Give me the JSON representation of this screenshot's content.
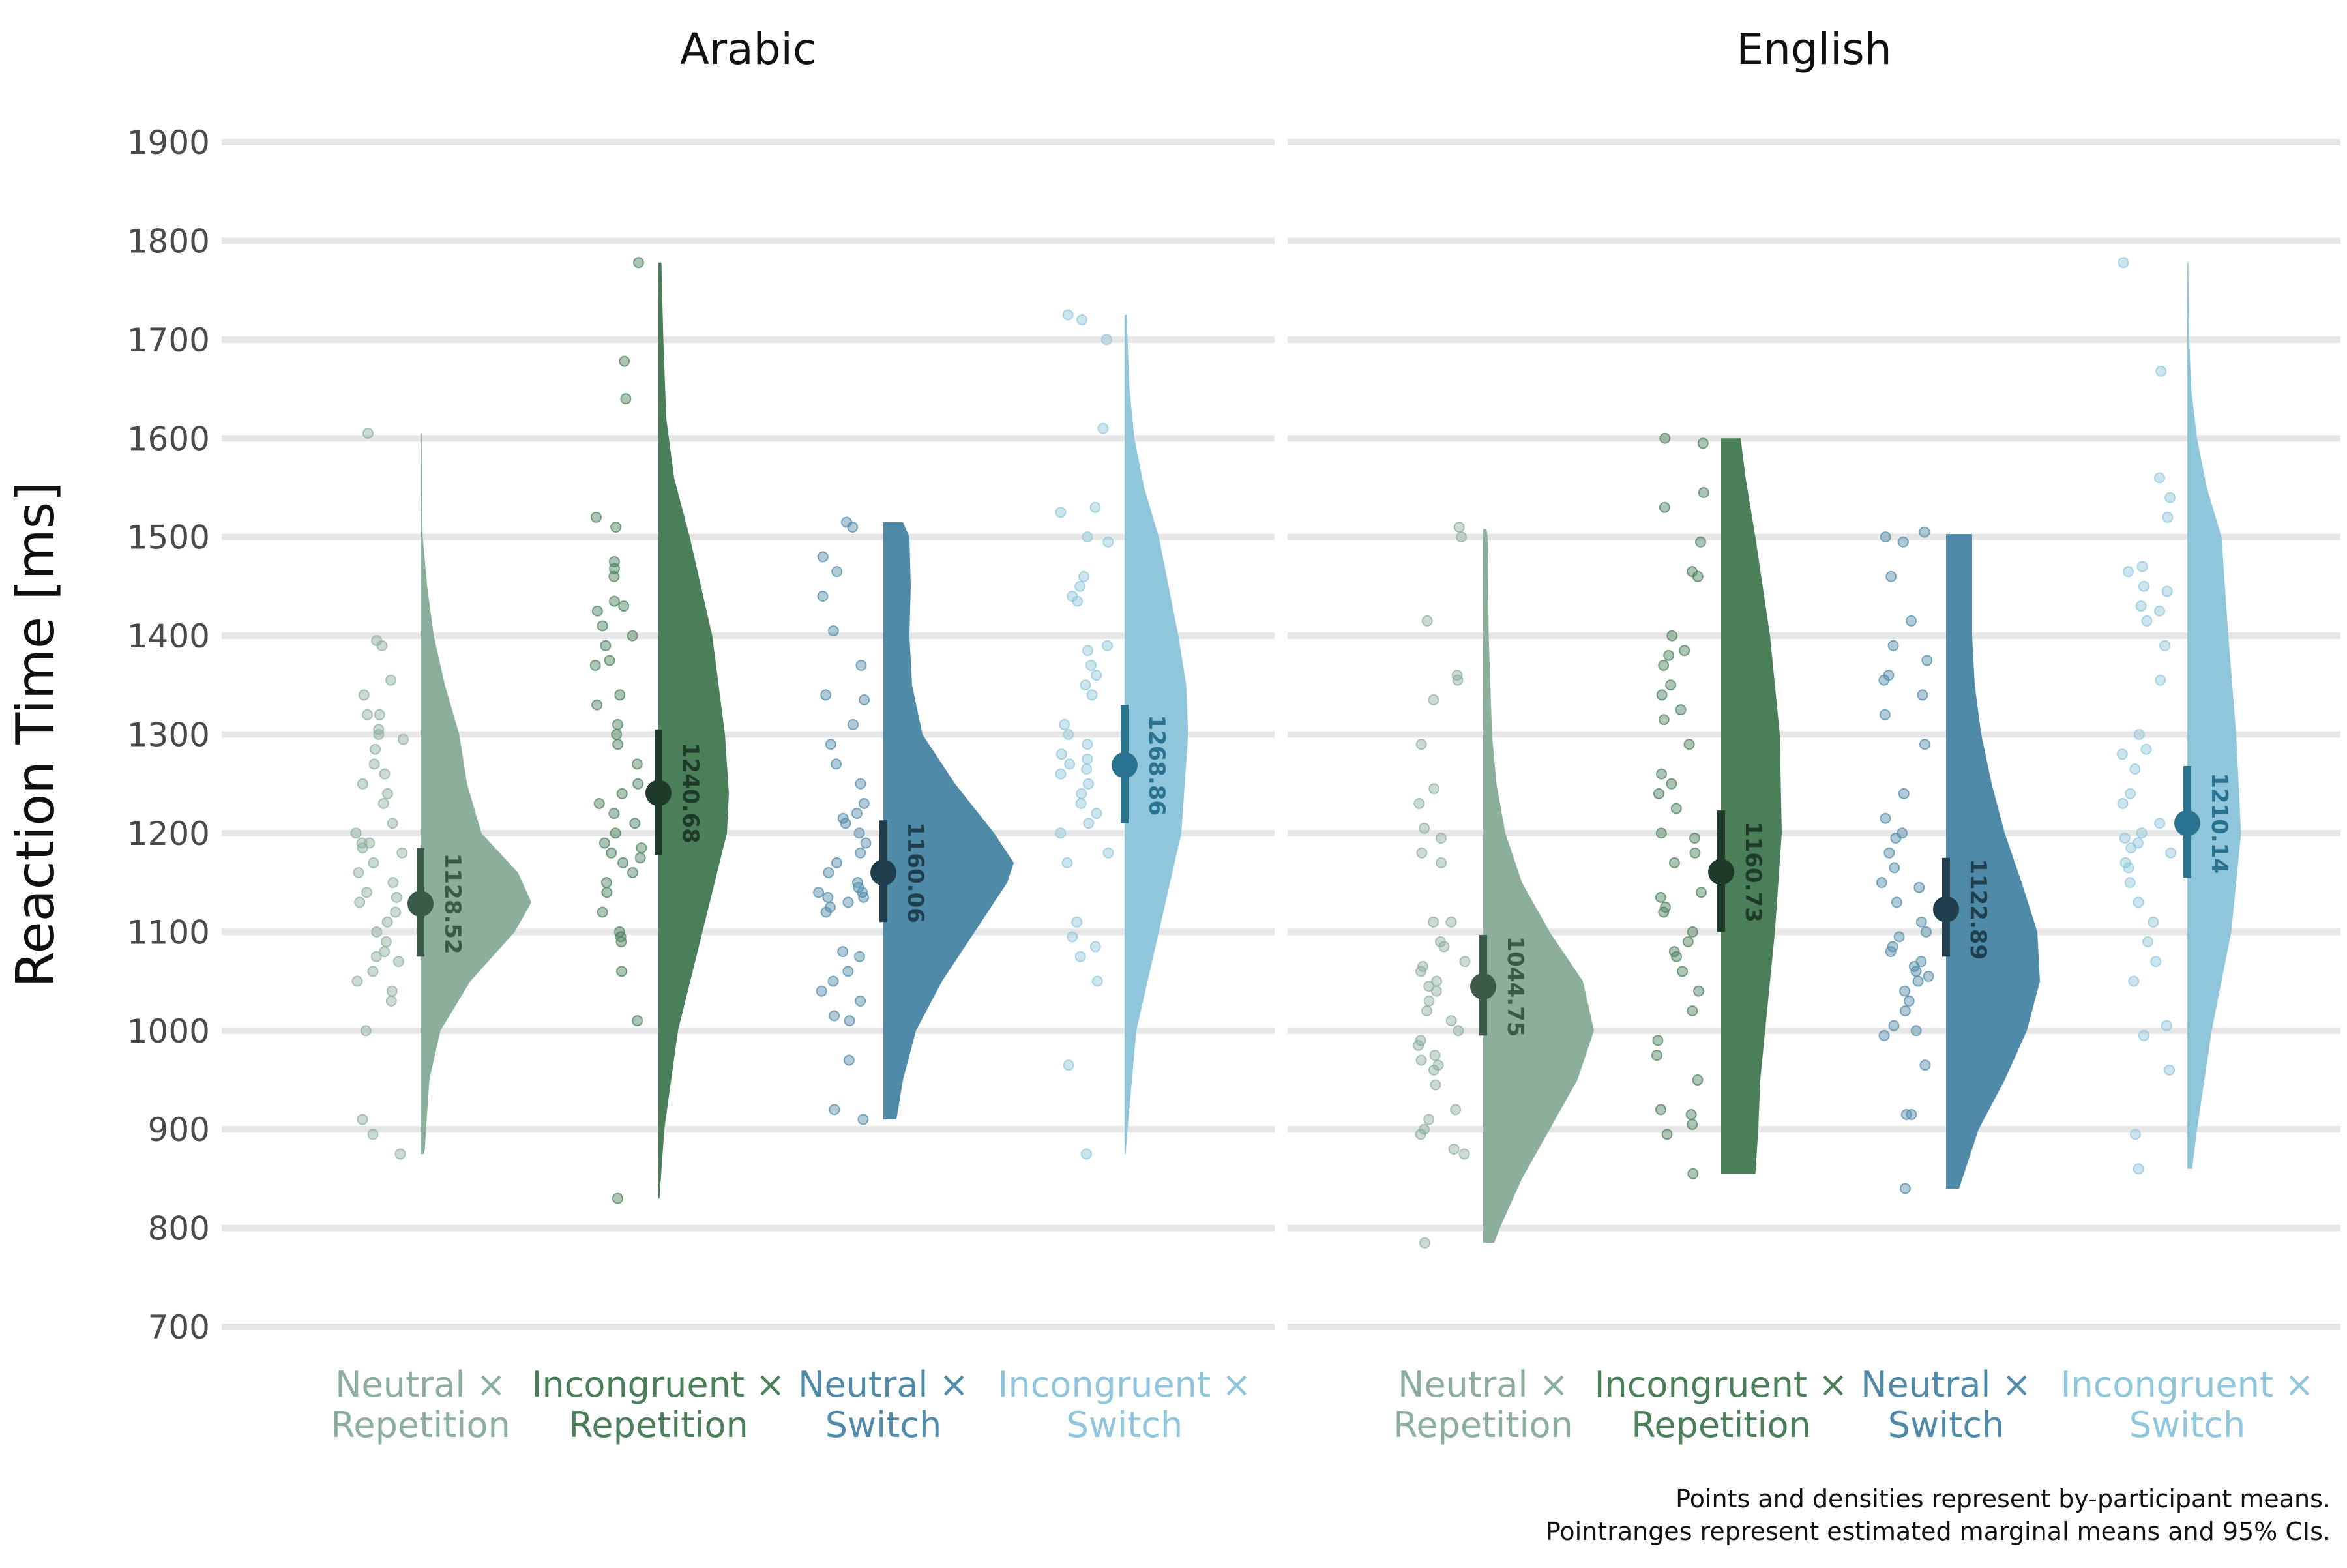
{
  "chart_data": {
    "type": "raincloud",
    "ylabel": "Reaction Time [ms]",
    "ylim": [
      700,
      1900
    ],
    "y_ticks": [
      700,
      800,
      900,
      1000,
      1100,
      1200,
      1300,
      1400,
      1500,
      1600,
      1700,
      1800,
      1900
    ],
    "grid": "horizontal",
    "caption": [
      "Points and densities represent by-participant means.",
      "Pointranges represent estimated marginal means and 95% CIs."
    ],
    "categories": [
      {
        "label_lines": [
          "Neutral ×",
          "Repetition"
        ],
        "color": "#8CAF9C",
        "estimate_color": "#3b5a48"
      },
      {
        "label_lines": [
          "Incongruent ×",
          "Repetition"
        ],
        "color": "#4A7F5A",
        "estimate_color": "#1e3a28"
      },
      {
        "label_lines": [
          "Neutral ×",
          "Switch"
        ],
        "color": "#4F8AA8",
        "estimate_color": "#1f3f4f"
      },
      {
        "label_lines": [
          "Incongruent ×",
          "Switch"
        ],
        "color": "#8FC6DB",
        "estimate_color": "#2a7390"
      }
    ],
    "panels": [
      {
        "title": "Arabic",
        "groups": [
          {
            "mean": 1128.52,
            "mean_label": "1128.52",
            "ci": [
              1075,
              1185
            ],
            "points": [
              1605,
              1395,
              1390,
              1355,
              1340,
              1320,
              1320,
              1305,
              1300,
              1295,
              1285,
              1270,
              1260,
              1250,
              1240,
              1230,
              1210,
              1200,
              1190,
              1190,
              1185,
              1180,
              1170,
              1160,
              1150,
              1140,
              1135,
              1130,
              1120,
              1110,
              1100,
              1090,
              1080,
              1075,
              1070,
              1060,
              1050,
              1040,
              1030,
              1000,
              910,
              895,
              875
            ],
            "density": [
              [
                875,
                0.03
              ],
              [
                880,
                0.04
              ],
              [
                900,
                0.05
              ],
              [
                950,
                0.08
              ],
              [
                1000,
                0.18
              ],
              [
                1050,
                0.45
              ],
              [
                1100,
                0.85
              ],
              [
                1130,
                1.0
              ],
              [
                1160,
                0.88
              ],
              [
                1200,
                0.55
              ],
              [
                1250,
                0.42
              ],
              [
                1300,
                0.35
              ],
              [
                1350,
                0.22
              ],
              [
                1400,
                0.12
              ],
              [
                1450,
                0.06
              ],
              [
                1500,
                0.02
              ],
              [
                1550,
                0.012
              ],
              [
                1605,
                0.01
              ]
            ]
          },
          {
            "mean": 1240.68,
            "mean_label": "1240.68",
            "ci": [
              1178,
              1305
            ],
            "points": [
              1778,
              1678,
              1640,
              1520,
              1510,
              1475,
              1468,
              1460,
              1435,
              1430,
              1425,
              1410,
              1400,
              1390,
              1375,
              1370,
              1340,
              1330,
              1310,
              1300,
              1290,
              1270,
              1250,
              1240,
              1230,
              1220,
              1210,
              1200,
              1190,
              1185,
              1180,
              1175,
              1170,
              1160,
              1150,
              1140,
              1120,
              1100,
              1095,
              1090,
              1060,
              1010,
              830
            ],
            "density": [
              [
                830,
                0.01
              ],
              [
                900,
                0.06
              ],
              [
                1000,
                0.2
              ],
              [
                1100,
                0.45
              ],
              [
                1200,
                0.7
              ],
              [
                1240,
                0.72
              ],
              [
                1300,
                0.68
              ],
              [
                1400,
                0.55
              ],
              [
                1500,
                0.32
              ],
              [
                1560,
                0.16
              ],
              [
                1620,
                0.08
              ],
              [
                1700,
                0.05
              ],
              [
                1778,
                0.03
              ]
            ]
          },
          {
            "mean": 1160.06,
            "mean_label": "1160.06",
            "ci": [
              1110,
              1213
            ],
            "points": [
              1515,
              1510,
              1480,
              1465,
              1440,
              1405,
              1370,
              1340,
              1335,
              1310,
              1290,
              1270,
              1250,
              1230,
              1220,
              1215,
              1210,
              1200,
              1190,
              1180,
              1170,
              1160,
              1150,
              1145,
              1140,
              1140,
              1135,
              1135,
              1130,
              1125,
              1120,
              1080,
              1075,
              1060,
              1050,
              1040,
              1030,
              1015,
              1010,
              970,
              920,
              910
            ],
            "density": [
              [
                910,
                0.1
              ],
              [
                950,
                0.15
              ],
              [
                1000,
                0.25
              ],
              [
                1050,
                0.45
              ],
              [
                1100,
                0.7
              ],
              [
                1150,
                0.95
              ],
              [
                1170,
                1.0
              ],
              [
                1200,
                0.85
              ],
              [
                1250,
                0.55
              ],
              [
                1300,
                0.3
              ],
              [
                1350,
                0.22
              ],
              [
                1400,
                0.2
              ],
              [
                1450,
                0.21
              ],
              [
                1500,
                0.2
              ],
              [
                1515,
                0.15
              ]
            ]
          },
          {
            "mean": 1268.86,
            "mean_label": "1268.86",
            "ci": [
              1210,
              1330
            ],
            "points": [
              1725,
              1720,
              1700,
              1610,
              1530,
              1525,
              1500,
              1495,
              1460,
              1450,
              1440,
              1435,
              1390,
              1385,
              1370,
              1360,
              1350,
              1340,
              1310,
              1300,
              1290,
              1280,
              1275,
              1270,
              1265,
              1260,
              1250,
              1240,
              1230,
              1220,
              1210,
              1200,
              1180,
              1170,
              1110,
              1095,
              1085,
              1075,
              1050,
              965,
              875
            ],
            "density": [
              [
                875,
                0.01
              ],
              [
                900,
                0.03
              ],
              [
                1000,
                0.12
              ],
              [
                1100,
                0.35
              ],
              [
                1200,
                0.58
              ],
              [
                1300,
                0.65
              ],
              [
                1350,
                0.63
              ],
              [
                1400,
                0.55
              ],
              [
                1500,
                0.35
              ],
              [
                1550,
                0.2
              ],
              [
                1600,
                0.1
              ],
              [
                1650,
                0.05
              ],
              [
                1700,
                0.03
              ],
              [
                1725,
                0.02
              ]
            ]
          }
        ]
      },
      {
        "title": "English",
        "groups": [
          {
            "mean": 1044.75,
            "mean_label": "1044.75",
            "ci": [
              995,
              1097
            ],
            "points": [
              1510,
              1500,
              1415,
              1360,
              1355,
              1335,
              1290,
              1245,
              1230,
              1205,
              1195,
              1180,
              1170,
              1110,
              1110,
              1090,
              1085,
              1070,
              1065,
              1060,
              1050,
              1045,
              1040,
              1030,
              1020,
              1010,
              1000,
              990,
              985,
              975,
              970,
              965,
              960,
              945,
              920,
              910,
              900,
              895,
              880,
              875,
              785
            ],
            "density": [
              [
                785,
                0.1
              ],
              [
                800,
                0.15
              ],
              [
                850,
                0.35
              ],
              [
                900,
                0.6
              ],
              [
                950,
                0.85
              ],
              [
                1000,
                1.0
              ],
              [
                1050,
                0.9
              ],
              [
                1100,
                0.6
              ],
              [
                1150,
                0.35
              ],
              [
                1200,
                0.2
              ],
              [
                1250,
                0.12
              ],
              [
                1300,
                0.08
              ],
              [
                1400,
                0.05
              ],
              [
                1500,
                0.04
              ],
              [
                1508,
                0.03
              ]
            ]
          },
          {
            "mean": 1160.73,
            "mean_label": "1160.73",
            "ci": [
              1100,
              1223
            ],
            "points": [
              1600,
              1595,
              1545,
              1530,
              1495,
              1465,
              1460,
              1400,
              1385,
              1380,
              1370,
              1350,
              1340,
              1325,
              1315,
              1290,
              1260,
              1250,
              1240,
              1225,
              1200,
              1195,
              1180,
              1170,
              1140,
              1135,
              1125,
              1120,
              1100,
              1090,
              1080,
              1075,
              1060,
              1040,
              1020,
              990,
              975,
              950,
              920,
              915,
              905,
              895,
              855
            ],
            "density": [
              [
                855,
                0.35
              ],
              [
                900,
                0.38
              ],
              [
                950,
                0.4
              ],
              [
                1000,
                0.45
              ],
              [
                1100,
                0.55
              ],
              [
                1200,
                0.62
              ],
              [
                1300,
                0.6
              ],
              [
                1400,
                0.5
              ],
              [
                1500,
                0.35
              ],
              [
                1560,
                0.25
              ],
              [
                1600,
                0.2
              ]
            ]
          },
          {
            "mean": 1122.89,
            "mean_label": "1122.89",
            "ci": [
              1075,
              1175
            ],
            "points": [
              1505,
              1500,
              1495,
              1460,
              1415,
              1390,
              1375,
              1360,
              1355,
              1340,
              1320,
              1290,
              1240,
              1215,
              1200,
              1195,
              1180,
              1165,
              1150,
              1145,
              1130,
              1110,
              1100,
              1095,
              1085,
              1080,
              1070,
              1065,
              1060,
              1055,
              1050,
              1040,
              1030,
              1020,
              1005,
              1000,
              995,
              965,
              915,
              915,
              840
            ],
            "density": [
              [
                840,
                0.1
              ],
              [
                900,
                0.25
              ],
              [
                950,
                0.45
              ],
              [
                1000,
                0.62
              ],
              [
                1050,
                0.72
              ],
              [
                1100,
                0.7
              ],
              [
                1150,
                0.58
              ],
              [
                1200,
                0.45
              ],
              [
                1250,
                0.35
              ],
              [
                1300,
                0.27
              ],
              [
                1350,
                0.22
              ],
              [
                1400,
                0.2
              ],
              [
                1450,
                0.2
              ],
              [
                1503,
                0.2
              ]
            ]
          },
          {
            "mean": 1210.14,
            "mean_label": "1210.14",
            "ci": [
              1155,
              1268
            ],
            "points": [
              1778,
              1668,
              1560,
              1540,
              1520,
              1470,
              1465,
              1450,
              1445,
              1430,
              1425,
              1415,
              1390,
              1355,
              1300,
              1285,
              1280,
              1265,
              1240,
              1230,
              1210,
              1200,
              1195,
              1190,
              1185,
              1180,
              1170,
              1165,
              1150,
              1130,
              1110,
              1090,
              1070,
              1050,
              1005,
              995,
              960,
              895,
              860
            ],
            "density": [
              [
                860,
                0.05
              ],
              [
                900,
                0.1
              ],
              [
                1000,
                0.25
              ],
              [
                1100,
                0.45
              ],
              [
                1200,
                0.55
              ],
              [
                1300,
                0.5
              ],
              [
                1400,
                0.42
              ],
              [
                1500,
                0.35
              ],
              [
                1550,
                0.2
              ],
              [
                1600,
                0.1
              ],
              [
                1650,
                0.04
              ],
              [
                1700,
                0.02
              ],
              [
                1778,
                0.01
              ]
            ]
          }
        ]
      }
    ]
  }
}
